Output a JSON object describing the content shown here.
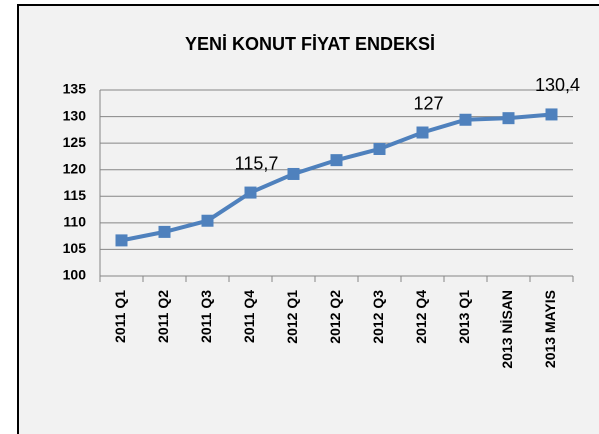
{
  "chart_data": {
    "type": "line",
    "title": "YENİ KONUT FİYAT ENDEKSİ",
    "categories": [
      "2011 Q1",
      "2011 Q2",
      "2011 Q3",
      "2011 Q4",
      "2012 Q1",
      "2012 Q2",
      "2012 Q3",
      "2012 Q4",
      "2013 Q1",
      "2013 NİSAN",
      "2013 MAYIS"
    ],
    "values": [
      106.7,
      108.3,
      110.4,
      115.7,
      119.2,
      121.8,
      123.9,
      127,
      129.4,
      129.7,
      130.4
    ],
    "value_labels": [
      null,
      null,
      null,
      "115,7",
      null,
      null,
      null,
      "127",
      null,
      null,
      "130,4"
    ],
    "color": "#4f81bd",
    "ylim": [
      100,
      135
    ],
    "yticks": [
      100,
      105,
      110,
      115,
      120,
      125,
      130,
      135
    ],
    "grid": true
  }
}
